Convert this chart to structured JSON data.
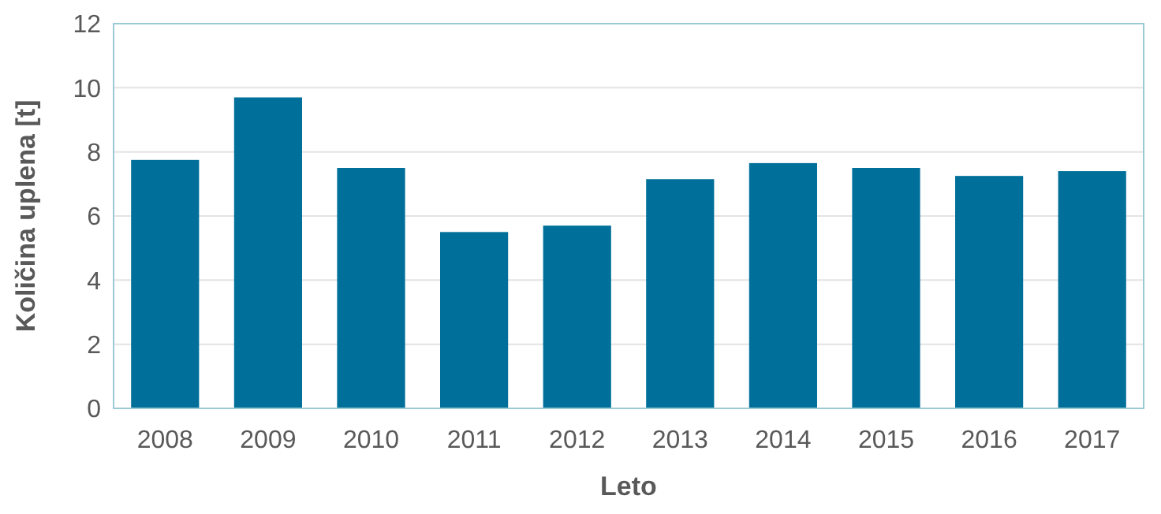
{
  "chart_data": {
    "type": "bar",
    "xlabel": "Leto",
    "ylabel": "Količina uplena [t]",
    "categories": [
      "2008",
      "2009",
      "2010",
      "2011",
      "2012",
      "2013",
      "2014",
      "2015",
      "2016",
      "2017"
    ],
    "values": [
      7.75,
      9.7,
      7.5,
      5.5,
      5.7,
      7.15,
      7.65,
      7.5,
      7.25,
      7.4
    ],
    "color": "#00709a",
    "ylim": [
      0,
      12
    ],
    "yticks": [
      0,
      2,
      4,
      6,
      8,
      10,
      12
    ],
    "grid": "y"
  }
}
